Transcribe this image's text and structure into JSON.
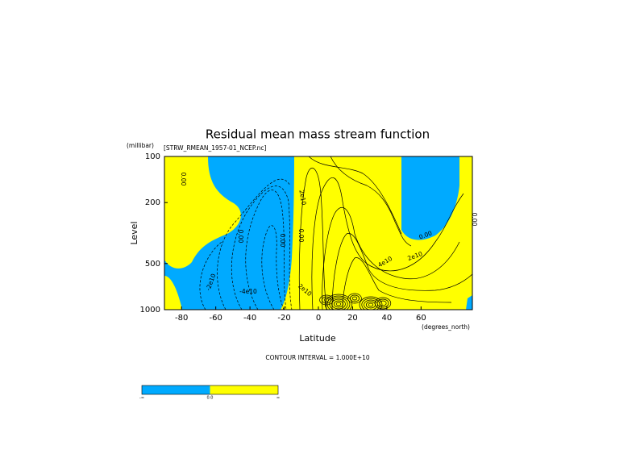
{
  "chart_data": {
    "type": "contour",
    "title": "Residual mean mass stream function",
    "y_unit": "(millibar)",
    "file_label": "[STRW_RMEAN_1957-01_NCEP.nc]",
    "y_label": "Level",
    "x_label": "Latitude",
    "x_unit": "(degrees_north)",
    "contour_interval_label": "CONTOUR INTERVAL = 1.000E+10",
    "xlim": [
      -90,
      90
    ],
    "xticks": [
      -80,
      -60,
      -40,
      -20,
      0,
      20,
      40,
      60
    ],
    "ylim": [
      1000,
      100
    ],
    "yticks": [
      100,
      200,
      500,
      1000
    ],
    "log_y": true,
    "fill_colors": [
      "#00aaff",
      "#ffff00"
    ],
    "colorbar_labels": [
      "-∞",
      "0.0",
      "∞"
    ],
    "contour_labels": [
      "0.00",
      "0.00",
      "-2e10",
      "-4e10",
      "0.00",
      "0.00",
      "2e10",
      "2e10",
      "4e10",
      "0.00",
      "2e10",
      "0.00"
    ]
  }
}
